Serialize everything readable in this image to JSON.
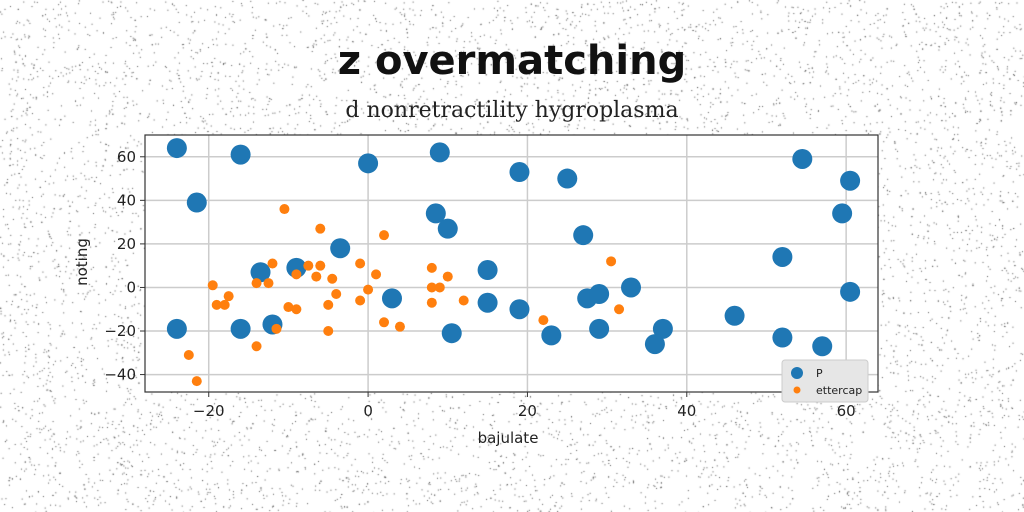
{
  "chart_data": {
    "type": "scatter",
    "title": "z overmatching",
    "subtitle": "d nonretractility hygroplasma",
    "xlabel": "bajulate",
    "ylabel": "noting",
    "xlim": [
      -28,
      64
    ],
    "ylim": [
      -48,
      70
    ],
    "xticks": [
      -20,
      0,
      20,
      40,
      60
    ],
    "yticks": [
      -40,
      -20,
      0,
      20,
      40,
      60
    ],
    "grid": true,
    "legend_position": "bottom-right",
    "series": [
      {
        "name": "P",
        "color": "#1f77b4",
        "marker_size": "large",
        "points": [
          [
            -24,
            64
          ],
          [
            -16,
            61
          ],
          [
            -21.5,
            39
          ],
          [
            0,
            57
          ],
          [
            9,
            62
          ],
          [
            19,
            53
          ],
          [
            25,
            50
          ],
          [
            8.5,
            34
          ],
          [
            10,
            27
          ],
          [
            27,
            24
          ],
          [
            -3.5,
            18
          ],
          [
            -13.5,
            7
          ],
          [
            -9,
            9
          ],
          [
            15,
            8
          ],
          [
            3,
            -5
          ],
          [
            15,
            -7
          ],
          [
            19,
            -10
          ],
          [
            10.5,
            -21
          ],
          [
            -24,
            -19
          ],
          [
            -16,
            -19
          ],
          [
            -12,
            -17
          ],
          [
            23,
            -22
          ],
          [
            27.5,
            -5
          ],
          [
            29,
            -3
          ],
          [
            29,
            -19
          ],
          [
            33,
            0
          ],
          [
            37,
            -19
          ],
          [
            36,
            -26
          ],
          [
            46,
            -13
          ],
          [
            52,
            -23
          ],
          [
            52,
            14
          ],
          [
            54.5,
            59
          ],
          [
            57,
            -27
          ],
          [
            59.5,
            34
          ],
          [
            60.5,
            49
          ],
          [
            60.5,
            -2
          ]
        ]
      },
      {
        "name": "ettercap",
        "color": "#ff7f0e",
        "marker_size": "small",
        "points": [
          [
            -10.5,
            36
          ],
          [
            -6,
            27
          ],
          [
            2,
            24
          ],
          [
            -12,
            11
          ],
          [
            -7.5,
            10
          ],
          [
            -6,
            10
          ],
          [
            -4.5,
            4
          ],
          [
            -6.5,
            5
          ],
          [
            -14,
            2
          ],
          [
            -12.5,
            2
          ],
          [
            -9,
            6
          ],
          [
            -19.5,
            1
          ],
          [
            -17.5,
            -4
          ],
          [
            -19,
            -8
          ],
          [
            -18,
            -8
          ],
          [
            -4,
            -3
          ],
          [
            0,
            -1
          ],
          [
            1,
            6
          ],
          [
            -1,
            11
          ],
          [
            -1,
            -6
          ],
          [
            -5,
            -8
          ],
          [
            -10,
            -9
          ],
          [
            -9,
            -10
          ],
          [
            -5,
            -20
          ],
          [
            2,
            -16
          ],
          [
            4,
            -18
          ],
          [
            -11.5,
            -19
          ],
          [
            -14,
            -27
          ],
          [
            -22.5,
            -31
          ],
          [
            -21.5,
            -43
          ],
          [
            8,
            9
          ],
          [
            10,
            5
          ],
          [
            8,
            0
          ],
          [
            9,
            0
          ],
          [
            8,
            -7
          ],
          [
            12,
            -6
          ],
          [
            22,
            -15
          ],
          [
            30.5,
            12
          ],
          [
            31.5,
            -10
          ]
        ]
      }
    ]
  }
}
